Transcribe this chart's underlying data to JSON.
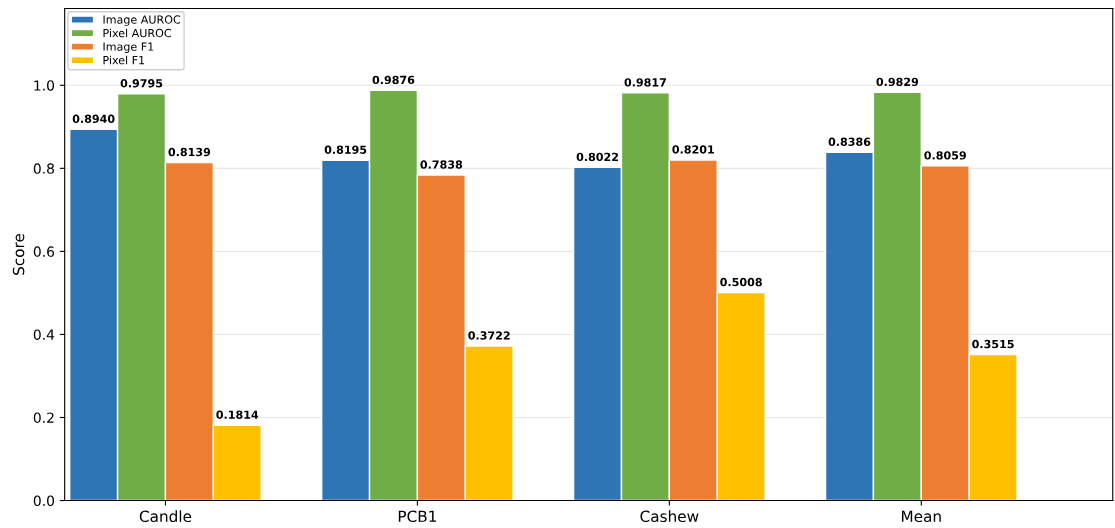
{
  "chart_data": {
    "type": "bar",
    "ylabel": "Score",
    "categories": [
      "Candle",
      "PCB1",
      "Cashew",
      "Mean"
    ],
    "series": [
      {
        "name": "Image AUROC",
        "color": "#2e75b6",
        "values": [
          0.894,
          0.8195,
          0.8022,
          0.8386
        ],
        "value_labels": [
          "0.8940",
          "0.8195",
          "0.8022",
          "0.8386"
        ]
      },
      {
        "name": "Pixel AUROC",
        "color": "#70ad47",
        "values": [
          0.9795,
          0.9876,
          0.9817,
          0.9829
        ],
        "value_labels": [
          "0.9795",
          "0.9876",
          "0.9817",
          "0.9829"
        ]
      },
      {
        "name": "Image F1",
        "color": "#ed7d31",
        "values": [
          0.8139,
          0.7838,
          0.8201,
          0.8059
        ],
        "value_labels": [
          "0.8139",
          "0.7838",
          "0.8201",
          "0.8059"
        ]
      },
      {
        "name": "Pixel F1",
        "color": "#ffc000",
        "values": [
          0.1814,
          0.3722,
          0.5008,
          0.3515
        ],
        "value_labels": [
          "0.1814",
          "0.3722",
          "0.5008",
          "0.3515"
        ]
      }
    ],
    "ylim": [
      0,
      1.185
    ],
    "yticks": [
      "0.0",
      "0.2",
      "0.4",
      "0.6",
      "0.8",
      "1.0"
    ],
    "grid": "y",
    "legend": "top left"
  }
}
